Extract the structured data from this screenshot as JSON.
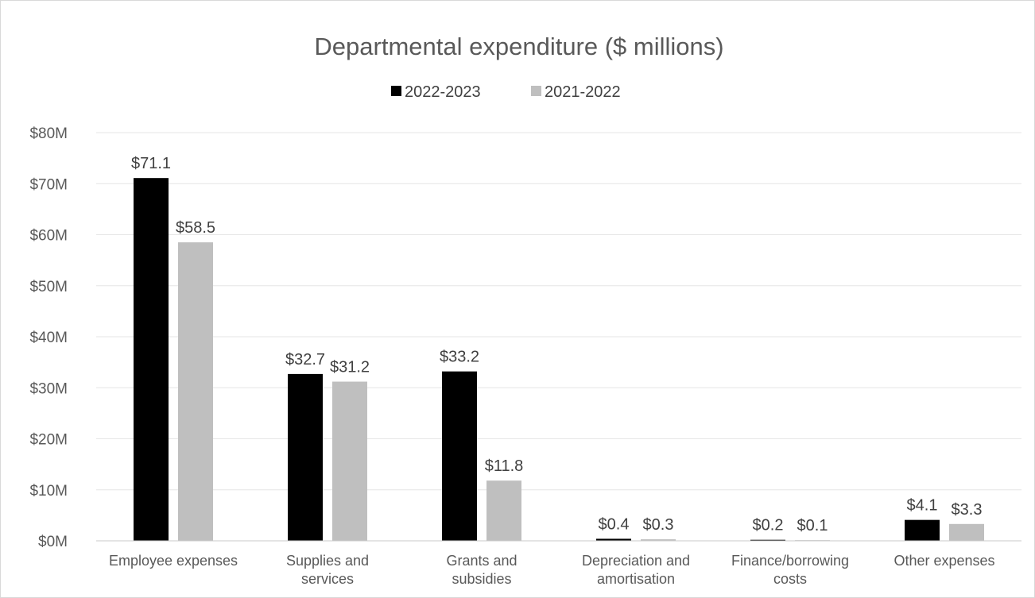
{
  "chart_data": {
    "type": "bar",
    "title": "Departmental expenditure ($ millions)",
    "xlabel": "",
    "ylabel": "",
    "ylim": [
      0,
      80
    ],
    "y_ticks": [
      "$0M",
      "$10M",
      "$20M",
      "$30M",
      "$40M",
      "$50M",
      "$60M",
      "$70M",
      "$80M"
    ],
    "grid": true,
    "legend_position": "top-center",
    "categories": [
      [
        "Employee expenses"
      ],
      [
        "Supplies and",
        "services"
      ],
      [
        "Grants and",
        "subsidies"
      ],
      [
        "Depreciation and",
        "amortisation"
      ],
      [
        "Finance/borrowing",
        "costs"
      ],
      [
        "Other expenses"
      ]
    ],
    "series": [
      {
        "name": "2022-2023",
        "color": "#000000",
        "values": [
          71.1,
          32.7,
          33.2,
          0.4,
          0.2,
          4.1
        ],
        "labels": [
          "$71.1",
          "$32.7",
          "$33.2",
          "$0.4",
          "$0.2",
          "$4.1"
        ]
      },
      {
        "name": "2021-2022",
        "color": "#bfbfbf",
        "values": [
          58.5,
          31.2,
          11.8,
          0.3,
          0.1,
          3.3
        ],
        "labels": [
          "$58.5",
          "$31.2",
          "$11.8",
          "$0.3",
          "$0.1",
          "$3.3"
        ]
      }
    ]
  }
}
